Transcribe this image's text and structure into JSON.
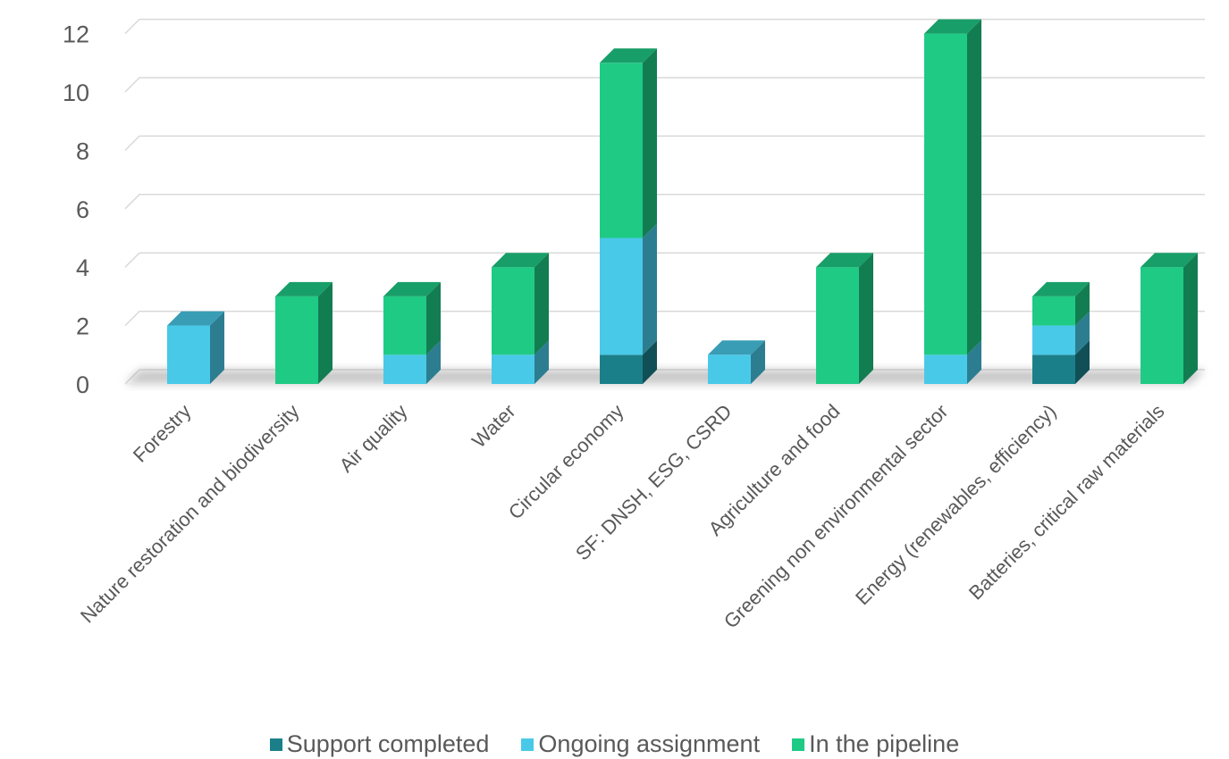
{
  "chart_data": {
    "type": "bar",
    "stacked": true,
    "style": "3d",
    "categories": [
      "Forestry",
      "Nature restoration and biodiversity",
      "Air quality",
      "Water",
      "Circular economy",
      "SF: DNSH, ESG, CSRD",
      "Agriculture and food",
      "Greening non environmental sector",
      "Energy (renewables, efficiency)",
      "Batteries, critical raw materials"
    ],
    "series": [
      {
        "name": "Support completed",
        "color": "#1b7f8a",
        "values": [
          0,
          0,
          0,
          0,
          1,
          0,
          0,
          0,
          1,
          0
        ]
      },
      {
        "name": "Ongoing assignment",
        "color": "#48c9e8",
        "values": [
          2,
          0,
          1,
          1,
          4,
          1,
          0,
          1,
          1,
          0
        ]
      },
      {
        "name": "In the pipeline",
        "color": "#1fca85",
        "values": [
          0,
          3,
          2,
          3,
          6,
          0,
          4,
          11,
          1,
          4
        ]
      }
    ],
    "yticks": [
      "0",
      "2",
      "4",
      "6",
      "8",
      "10",
      "12"
    ],
    "ylim": [
      0,
      12
    ],
    "title": "",
    "xlabel": "",
    "ylabel": "",
    "grid": true,
    "legend_position": "bottom"
  }
}
